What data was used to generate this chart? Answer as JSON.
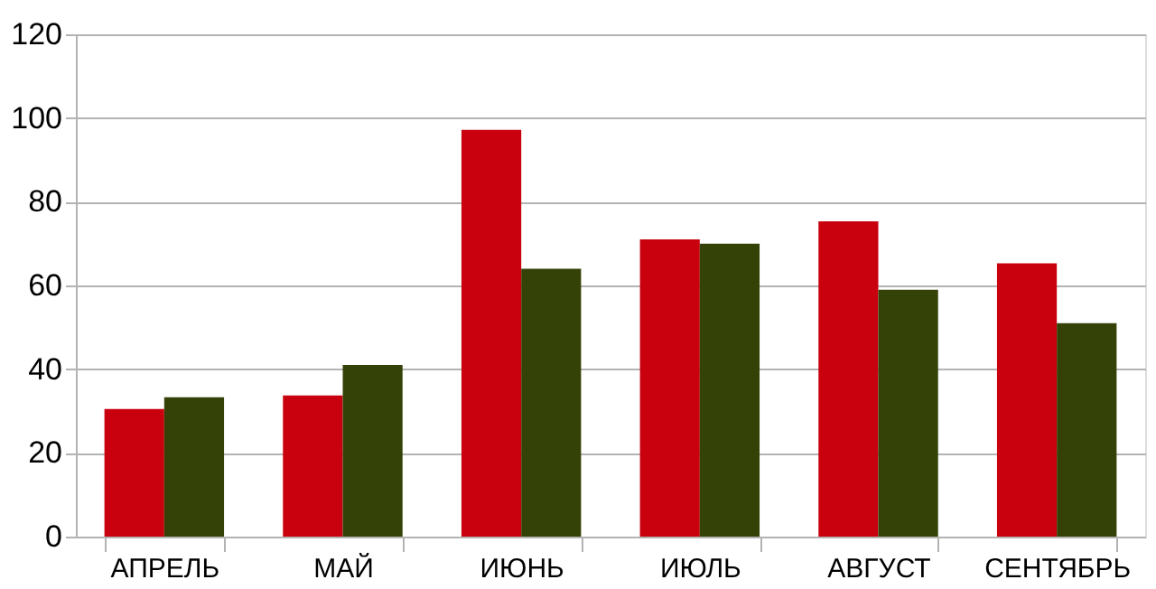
{
  "chart_data": {
    "type": "bar",
    "categories": [
      "АПРЕЛЬ",
      "МАЙ",
      "ИЮНЬ",
      "ИЮЛЬ",
      "АВГУСТ",
      "СЕНТЯБРЬ"
    ],
    "series": [
      {
        "color": "#c9000e",
        "values": [
          30.5,
          33.7,
          97.2,
          71,
          75.3,
          65.3
        ]
      },
      {
        "color": "#344207",
        "values": [
          33.3,
          41,
          64,
          70,
          59,
          51
        ]
      }
    ],
    "ylim": [
      0,
      120
    ],
    "yticks": [
      0,
      20,
      40,
      60,
      80,
      100,
      120
    ],
    "grid": "y",
    "legend": false
  }
}
